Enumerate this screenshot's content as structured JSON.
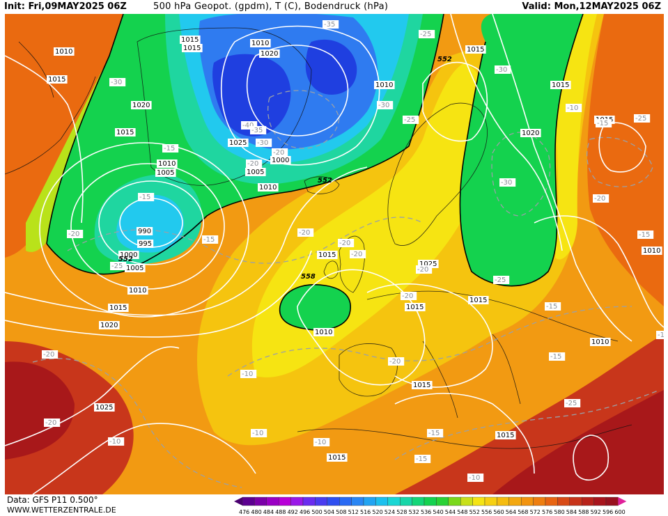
{
  "header": {
    "init": "Init: Fri,09MAY2025 06Z",
    "title": "500 hPa Geopot. (gpdm), T (C), Bodendruck (hPa)",
    "valid": "Valid: Mon,12MAY2025 06Z"
  },
  "footer": {
    "data_source": "Data: GFS P11 0.500°",
    "site": "WWW.WETTERZENTRALE.DE"
  },
  "colors": {
    "deep_blue": "#1f3fe0",
    "blue": "#2f7bf0",
    "cyan": "#22c9ee",
    "teal": "#1fd6a0",
    "green": "#14d24e",
    "yellow_green": "#b9e21a",
    "yellow": "#f6e412",
    "gold": "#f5c40f",
    "orange": "#f29a12",
    "dark_orange": "#ea6a10",
    "red": "#c8361b",
    "dark_red": "#a8181a"
  },
  "legend": {
    "values": [
      "476",
      "480",
      "484",
      "488",
      "492",
      "496",
      "500",
      "504",
      "508",
      "512",
      "516",
      "520",
      "524",
      "528",
      "532",
      "536",
      "540",
      "544",
      "548",
      "552",
      "556",
      "560",
      "564",
      "568",
      "572",
      "576",
      "580",
      "584",
      "588",
      "592",
      "596",
      "600"
    ],
    "colors": [
      "#4a0070",
      "#5c0090",
      "#7a00a8",
      "#9a00c4",
      "#b800d8",
      "#9a18e8",
      "#6a2cf0",
      "#4a3cf0",
      "#2f4ff0",
      "#2a6af4",
      "#2a86f4",
      "#22a4f2",
      "#1cc0ee",
      "#1ad6d4",
      "#18d6a8",
      "#14d678",
      "#14d250",
      "#2ad236",
      "#7ad81c",
      "#c8e01a",
      "#f4e414",
      "#f6d012",
      "#f5bc10",
      "#f3a810",
      "#f29410",
      "#ee7e10",
      "#e86412",
      "#d84a16",
      "#c8341a",
      "#b8221a",
      "#a8141c",
      "#98101e",
      "#e0209a"
    ]
  },
  "pressure_labels": [
    "1010",
    "1015",
    "1015",
    "1020",
    "1015",
    "1010",
    "1005",
    "990",
    "995",
    "1000",
    "1005",
    "1010",
    "1015",
    "1020",
    "1015",
    "1010",
    "1020",
    "1025",
    "1005",
    "1000",
    "1010",
    "1015",
    "1025",
    "1015",
    "1010",
    "1015",
    "1020",
    "1015",
    "1015",
    "1010",
    "1010",
    "1015",
    "1025",
    "1015",
    "1015",
    "1015",
    "1010"
  ],
  "temp_labels": [
    "-35",
    "-25",
    "-30",
    "-30",
    "-25",
    "-30",
    "-40",
    "-35",
    "-30",
    "-20",
    "-20",
    "-30",
    "-25",
    "-15",
    "-15",
    "-20",
    "-20",
    "-20",
    "-20",
    "-20",
    "-25",
    "-20",
    "-15",
    "-25",
    "-15",
    "-20",
    "-15",
    "-25",
    "-20",
    "-20",
    "-10",
    "-10",
    "-10",
    "-10",
    "-15",
    "-15",
    "-10",
    "-10",
    "-15",
    "-15",
    "-20",
    "-10"
  ],
  "geopot_labels": [
    "552",
    "552",
    "552",
    "558"
  ]
}
